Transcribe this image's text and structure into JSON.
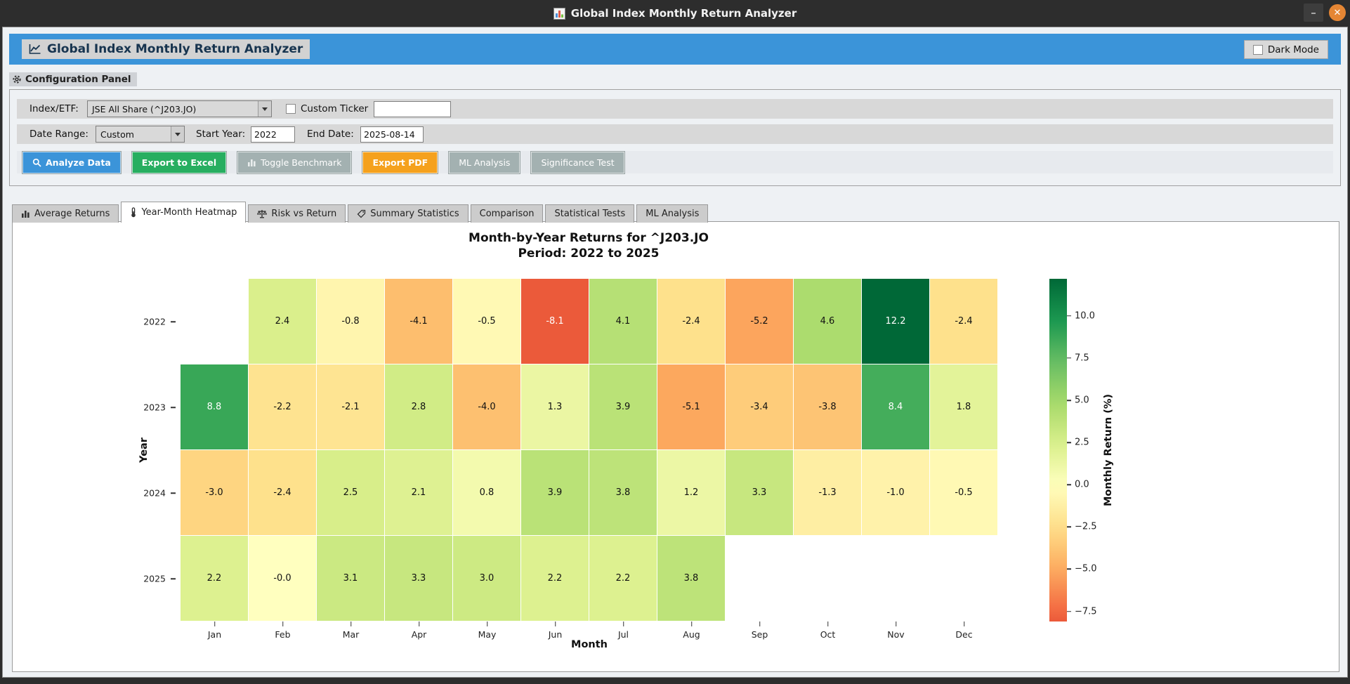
{
  "window": {
    "title": "Global Index Monthly Return Analyzer",
    "minimize": "–",
    "close": "✕"
  },
  "header": {
    "title": "Global Index Monthly Return Analyzer",
    "dark_mode_label": "Dark Mode"
  },
  "config": {
    "panel_label": "Configuration Panel",
    "index_label": "Index/ETF:",
    "index_value": "JSE All Share (^J203.JO)",
    "custom_ticker_label": "Custom Ticker",
    "custom_ticker_value": "",
    "date_range_label": "Date Range:",
    "date_range_value": "Custom",
    "start_year_label": "Start Year:",
    "start_year_value": "2022",
    "end_date_label": "End Date:",
    "end_date_value": "2025-08-14"
  },
  "actions": {
    "analyze": "Analyze Data",
    "export_excel": "Export to Excel",
    "toggle_benchmark": "Toggle Benchmark",
    "export_pdf": "Export PDF",
    "ml_analysis": "ML Analysis",
    "significance": "Significance Test"
  },
  "tabs": [
    {
      "label": "Average Returns",
      "icon": "bar-chart-icon",
      "active": false
    },
    {
      "label": "Year-Month Heatmap",
      "icon": "thermometer-icon",
      "active": true
    },
    {
      "label": "Risk vs Return",
      "icon": "scales-icon",
      "active": false
    },
    {
      "label": "Summary Statistics",
      "icon": "tag-icon",
      "active": false
    },
    {
      "label": "Comparison",
      "icon": null,
      "active": false
    },
    {
      "label": "Statistical Tests",
      "icon": null,
      "active": false
    },
    {
      "label": "ML Analysis",
      "icon": null,
      "active": false
    }
  ],
  "colors": {
    "titlebar": "#2d2d2d",
    "close_button": "#e58634",
    "accent_blue": "#3b94d9",
    "button_green": "#27ae60",
    "button_orange": "#f5a11d",
    "button_gray": "#a3b1b1"
  },
  "chart_data": {
    "type": "heatmap",
    "title": "Month-by-Year Returns for ^J203.JO",
    "subtitle": "Period: 2022 to 2025",
    "xlabel": "Month",
    "ylabel": "Year",
    "colorbar_label": "Monthly Return (%)",
    "cmap": "RdYlGn",
    "center": 0,
    "vmin": -8.1,
    "vmax": 12.2,
    "columns": [
      "Jan",
      "Feb",
      "Mar",
      "Apr",
      "May",
      "Jun",
      "Jul",
      "Aug",
      "Sep",
      "Oct",
      "Nov",
      "Dec"
    ],
    "rows": [
      "2022",
      "2023",
      "2024",
      "2025"
    ],
    "values": [
      [
        null,
        2.4,
        -0.8,
        -4.1,
        -0.5,
        -8.1,
        4.1,
        -2.4,
        -5.2,
        4.6,
        12.2,
        -2.4
      ],
      [
        8.8,
        -2.2,
        -2.1,
        2.8,
        -4.0,
        1.3,
        3.9,
        -5.1,
        -3.4,
        -3.8,
        8.4,
        1.8
      ],
      [
        -3.0,
        -2.4,
        2.5,
        2.1,
        0.8,
        3.9,
        3.8,
        1.2,
        3.3,
        -1.3,
        -1.0,
        -0.5
      ],
      [
        2.2,
        -0.0,
        3.1,
        3.3,
        3.0,
        2.2,
        2.2,
        3.8,
        null,
        null,
        null,
        null
      ]
    ],
    "labels": [
      [
        "",
        "2.4",
        "-0.8",
        "-4.1",
        "-0.5",
        "-8.1",
        "4.1",
        "-2.4",
        "-5.2",
        "4.6",
        "12.2",
        "-2.4"
      ],
      [
        "8.8",
        "-2.2",
        "-2.1",
        "2.8",
        "-4.0",
        "1.3",
        "3.9",
        "-5.1",
        "-3.4",
        "-3.8",
        "8.4",
        "1.8"
      ],
      [
        "-3.0",
        "-2.4",
        "2.5",
        "2.1",
        "0.8",
        "3.9",
        "3.8",
        "1.2",
        "3.3",
        "-1.3",
        "-1.0",
        "-0.5"
      ],
      [
        "2.2",
        "-0.0",
        "3.1",
        "3.3",
        "3.0",
        "2.2",
        "2.2",
        "3.8",
        "",
        "",
        "",
        ""
      ]
    ],
    "colorbar_ticks": [
      {
        "value": 10.0,
        "label": "10.0"
      },
      {
        "value": 7.5,
        "label": "7.5"
      },
      {
        "value": 5.0,
        "label": "5.0"
      },
      {
        "value": 2.5,
        "label": "2.5"
      },
      {
        "value": 0.0,
        "label": "0.0"
      },
      {
        "value": -2.5,
        "label": "−2.5"
      },
      {
        "value": -5.0,
        "label": "−5.0"
      },
      {
        "value": -7.5,
        "label": "−7.5"
      }
    ]
  }
}
